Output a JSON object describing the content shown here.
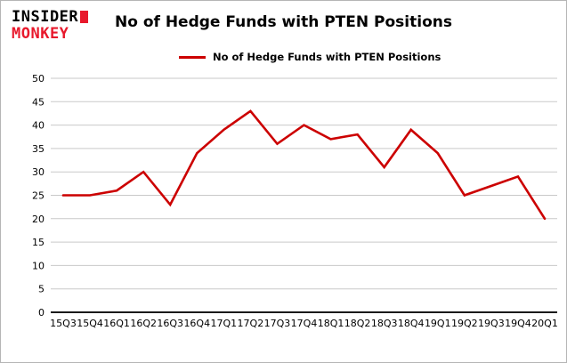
{
  "logo": {
    "line1": "INSIDER",
    "line2": "MONKEY",
    "color": "#e8192c"
  },
  "header": {
    "title": "No of Hedge Funds with PTEN Positions"
  },
  "legend": {
    "label": "No of Hedge Funds with PTEN Positions",
    "color": "#cc0000"
  },
  "chart_data": {
    "type": "line",
    "title": "No of Hedge Funds with PTEN Positions",
    "categories": [
      "15Q3",
      "15Q4",
      "16Q1",
      "16Q2",
      "16Q3",
      "16Q4",
      "17Q1",
      "17Q2",
      "17Q3",
      "17Q4",
      "18Q1",
      "18Q2",
      "18Q3",
      "18Q4",
      "19Q1",
      "19Q2",
      "19Q3",
      "19Q4",
      "20Q1"
    ],
    "values": [
      25,
      25,
      26,
      30,
      23,
      34,
      39,
      43,
      36,
      40,
      37,
      38,
      31,
      39,
      34,
      25,
      27,
      29,
      20
    ],
    "xlabel": "",
    "ylabel": "",
    "ylim": [
      0,
      50
    ],
    "yticks": [
      0,
      5,
      10,
      15,
      20,
      25,
      30,
      35,
      40,
      45,
      50
    ],
    "line_color": "#cc0000",
    "grid": true,
    "legend_position": "top"
  }
}
